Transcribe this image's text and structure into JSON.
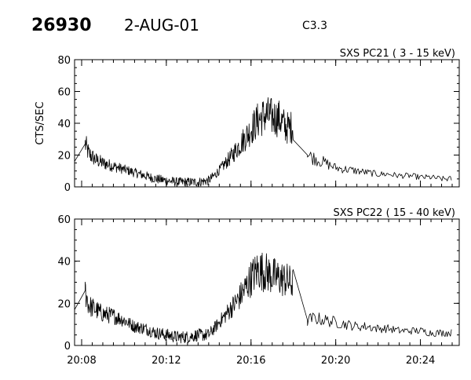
{
  "header": {
    "event_id": "26930",
    "date": "2-AUG-01",
    "goes_class": "C3.3"
  },
  "chart_data": [
    {
      "type": "line",
      "title": "SXS PC21  (  3 - 15 keV)",
      "xlabel": "",
      "ylabel": "CTS/SEC",
      "xlim": [
        "20:07:40",
        "20:25:50"
      ],
      "ylim": [
        0,
        80
      ],
      "yticks": [
        0,
        20,
        40,
        60,
        80
      ],
      "xticks": [
        "20:08",
        "20:12",
        "20:16",
        "20:20",
        "20:24"
      ],
      "grid": false,
      "series": [
        {
          "x": [
            "20:07:40",
            "20:08:10",
            "20:08:20",
            "20:08:40",
            "20:09:00",
            "20:09:30",
            "20:10:00",
            "20:10:30",
            "20:11:00",
            "20:11:30",
            "20:12:00",
            "20:12:30",
            "20:13:00",
            "20:13:30",
            "20:14:00",
            "20:14:20",
            "20:14:40",
            "20:15:00",
            "20:15:20",
            "20:15:40",
            "20:16:00",
            "20:16:20",
            "20:16:40",
            "20:17:00",
            "20:17:20",
            "20:17:40",
            "20:18:00",
            "20:18:40",
            "20:19:00",
            "20:19:30",
            "20:20:00",
            "20:20:30",
            "20:21:00",
            "20:21:30",
            "20:22:00",
            "20:22:30",
            "20:23:00",
            "20:23:30",
            "20:24:00",
            "20:24:30",
            "20:25:00",
            "20:25:30"
          ],
          "values": [
            16,
            27,
            21,
            17,
            15,
            13,
            11,
            9,
            7,
            5,
            4,
            3,
            3,
            3,
            4,
            8,
            13,
            18,
            24,
            30,
            36,
            42,
            45,
            44,
            43,
            37,
            38,
            20,
            18,
            15,
            12,
            11,
            10,
            9,
            8,
            8,
            7,
            7,
            6,
            6,
            5,
            5
          ]
        }
      ]
    },
    {
      "type": "line",
      "title": "SXS PC22  ( 15 - 40 keV)",
      "xlabel": "",
      "ylabel": "",
      "xlim": [
        "20:07:40",
        "20:25:50"
      ],
      "ylim": [
        0,
        60
      ],
      "yticks": [
        0,
        20,
        40,
        60
      ],
      "xticks": [
        "20:08",
        "20:12",
        "20:16",
        "20:20",
        "20:24"
      ],
      "grid": false,
      "series": [
        {
          "x": [
            "20:07:40",
            "20:08:10",
            "20:08:20",
            "20:08:40",
            "20:09:00",
            "20:09:30",
            "20:10:00",
            "20:10:30",
            "20:11:00",
            "20:11:30",
            "20:12:00",
            "20:12:30",
            "20:13:00",
            "20:13:30",
            "20:14:00",
            "20:14:20",
            "20:14:40",
            "20:15:00",
            "20:15:20",
            "20:15:40",
            "20:16:00",
            "20:16:20",
            "20:16:40",
            "20:17:00",
            "20:17:20",
            "20:17:40",
            "20:18:00",
            "20:18:40",
            "20:19:00",
            "20:19:30",
            "20:20:00",
            "20:20:30",
            "20:21:00",
            "20:21:30",
            "20:22:00",
            "20:22:30",
            "20:23:00",
            "20:23:30",
            "20:24:00",
            "20:24:30",
            "20:25:00",
            "20:25:30"
          ],
          "values": [
            17,
            26,
            19,
            17,
            15,
            14,
            12,
            9,
            8,
            6,
            5,
            4,
            4,
            5,
            5,
            9,
            13,
            17,
            21,
            26,
            32,
            36,
            35,
            33,
            32,
            31,
            29,
            12,
            13,
            12,
            11,
            10,
            9,
            9,
            8,
            8,
            7,
            7,
            7,
            6,
            6,
            6
          ]
        }
      ]
    }
  ]
}
